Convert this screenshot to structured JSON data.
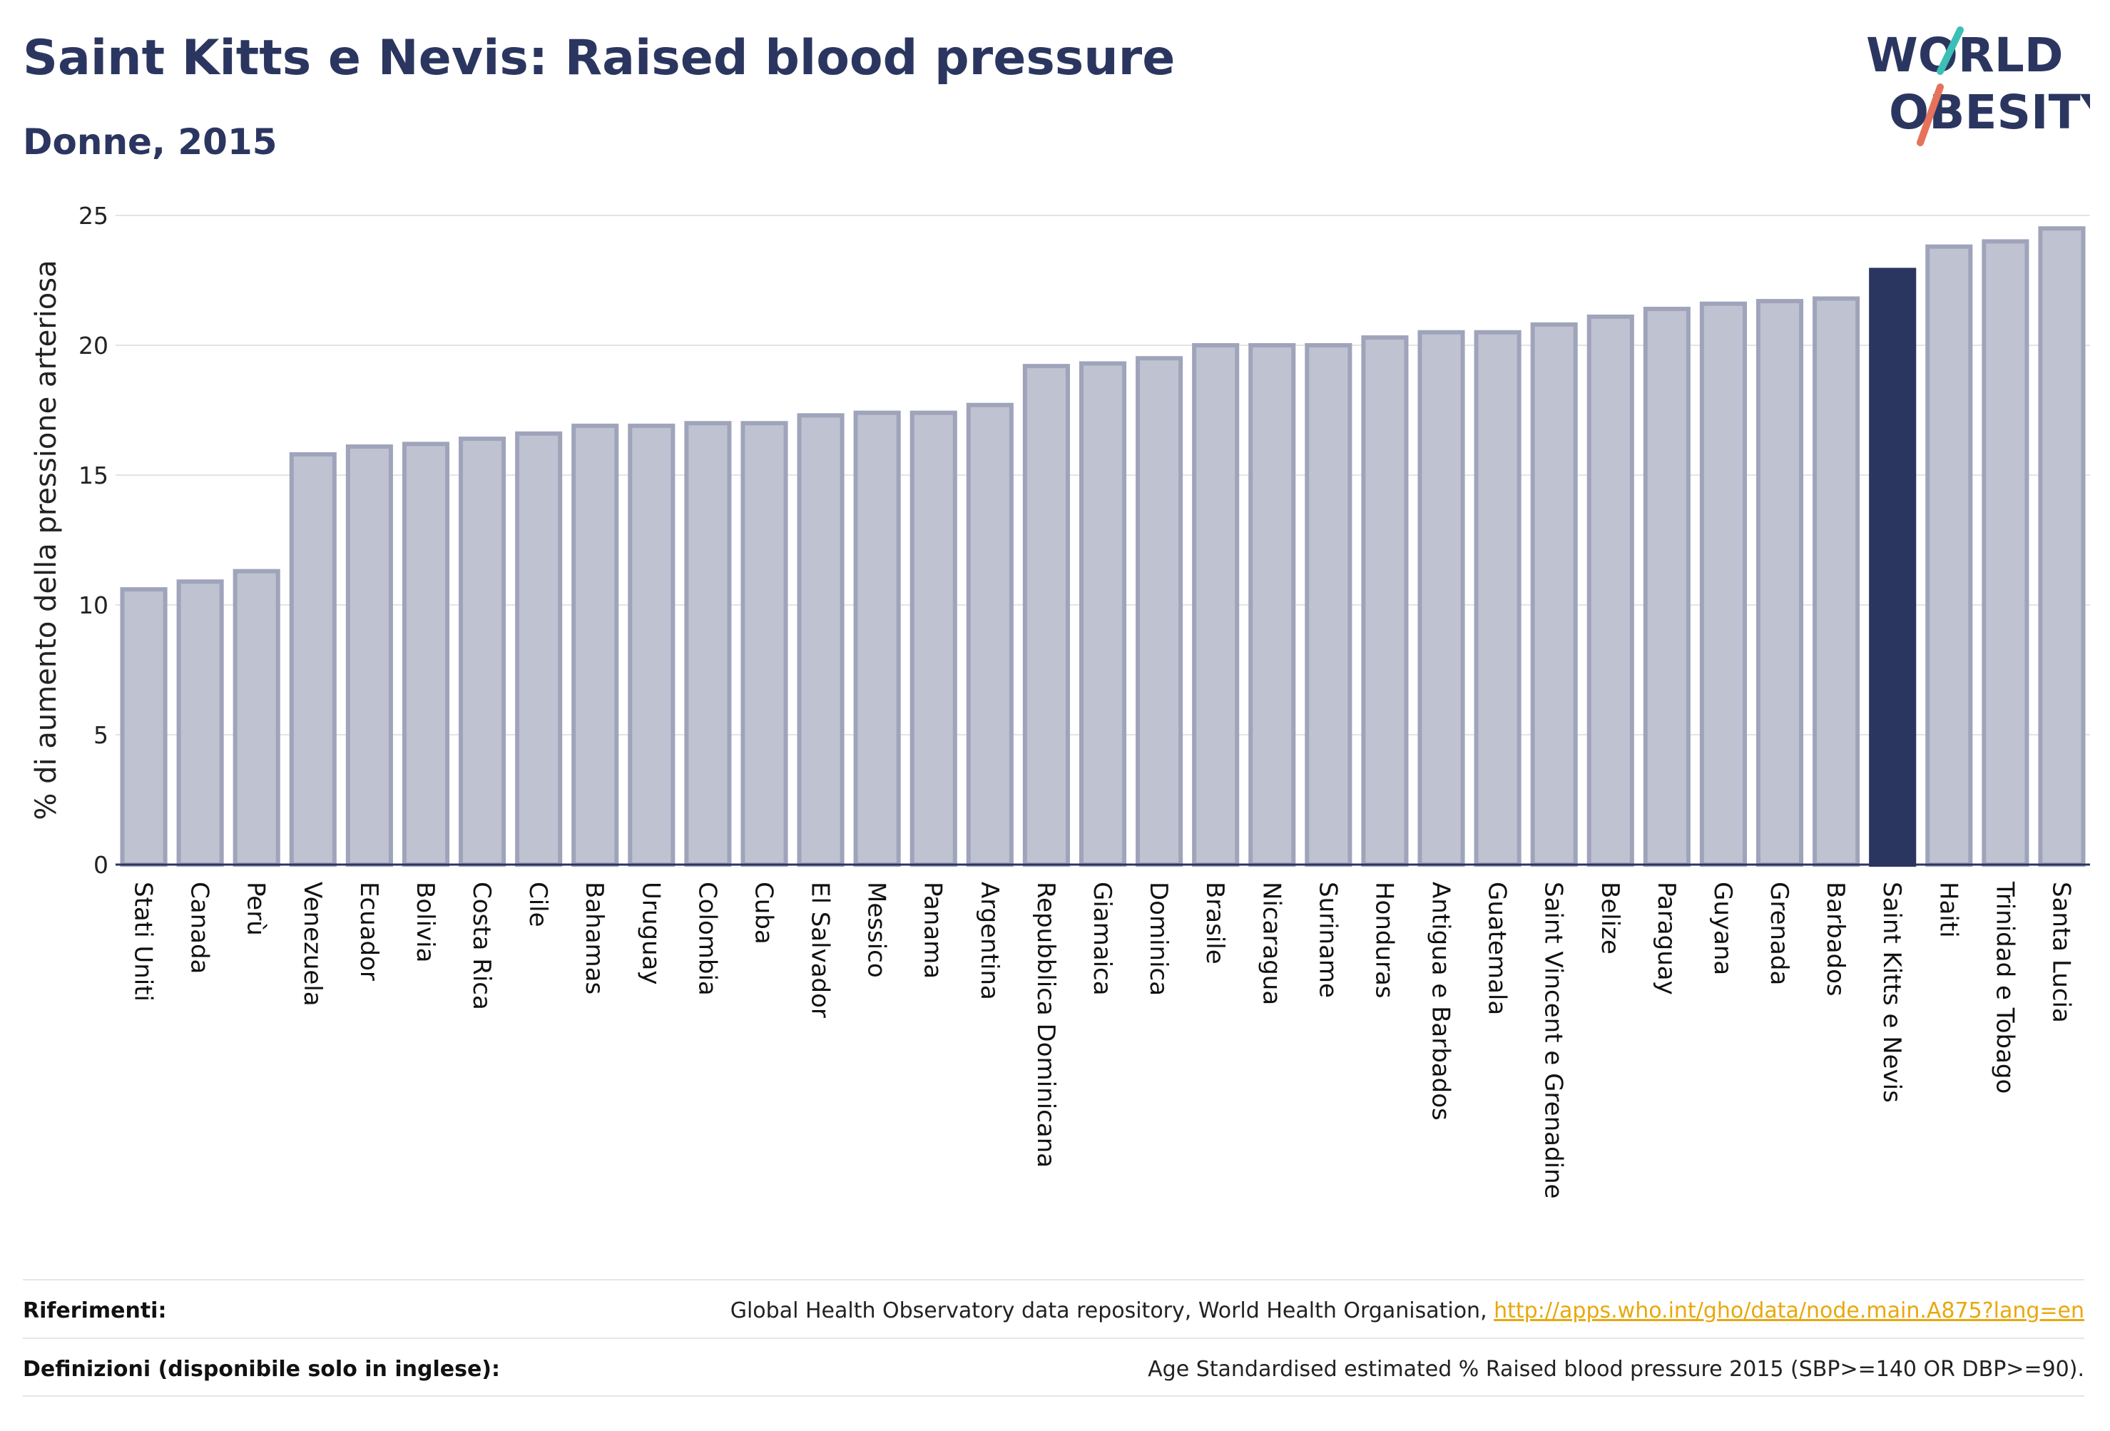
{
  "title": "Saint Kitts e Nevis: Raised blood pressure",
  "subtitle": "Donne, 2015",
  "logo": {
    "line1": "WORLD",
    "line2": "OBESITY"
  },
  "colors": {
    "bar": "#bfc2d0",
    "bar_border": "#9fa4bb",
    "highlight": "#2b3660",
    "title": "#2b3660",
    "link": "#e8a80c",
    "logo_teal": "#3bbfb6",
    "logo_red": "#e5735c"
  },
  "chart_data": {
    "type": "bar",
    "ylabel": "% di aumento della pressione arteriosa",
    "xlabel": "",
    "ylim": [
      0,
      25
    ],
    "yticks": [
      0,
      5,
      10,
      15,
      20,
      25
    ],
    "grid": true,
    "highlight": "Saint Kitts e Nevis",
    "categories": [
      "Stati Uniti",
      "Canada",
      "Perù",
      "Venezuela",
      "Ecuador",
      "Bolivia",
      "Costa Rica",
      "Cile",
      "Bahamas",
      "Uruguay",
      "Colombia",
      "Cuba",
      "El Salvador",
      "Messico",
      "Panama",
      "Argentina",
      "Repubblica Dominicana",
      "Giamaica",
      "Dominica",
      "Brasile",
      "Nicaragua",
      "Suriname",
      "Honduras",
      "Antigua e Barbados",
      "Guatemala",
      "Saint Vincent e Grenadine",
      "Belize",
      "Paraguay",
      "Guyana",
      "Grenada",
      "Barbados",
      "Saint Kitts e Nevis",
      "Haiti",
      "Trinidad e Tobago",
      "Santa Lucia"
    ],
    "values": [
      10.6,
      10.9,
      11.3,
      15.8,
      16.1,
      16.2,
      16.4,
      16.6,
      16.9,
      16.9,
      17.0,
      17.0,
      17.3,
      17.4,
      17.4,
      17.7,
      19.2,
      19.3,
      19.5,
      20.0,
      20.0,
      20.0,
      20.3,
      20.5,
      20.5,
      20.8,
      21.1,
      21.4,
      21.6,
      21.7,
      21.8,
      22.9,
      23.8,
      24.0,
      24.5
    ]
  },
  "footer": {
    "references_label": "Riferimenti:",
    "references_text": "Global Health Observatory data repository, World Health Organisation, ",
    "references_link": "http://apps.who.int/gho/data/node.main.A875?lang=en",
    "definitions_label": "Definizioni (disponibile solo in inglese):",
    "definitions_text": "Age Standardised estimated % Raised blood pressure 2015 (SBP>=140 OR DBP>=90)."
  }
}
